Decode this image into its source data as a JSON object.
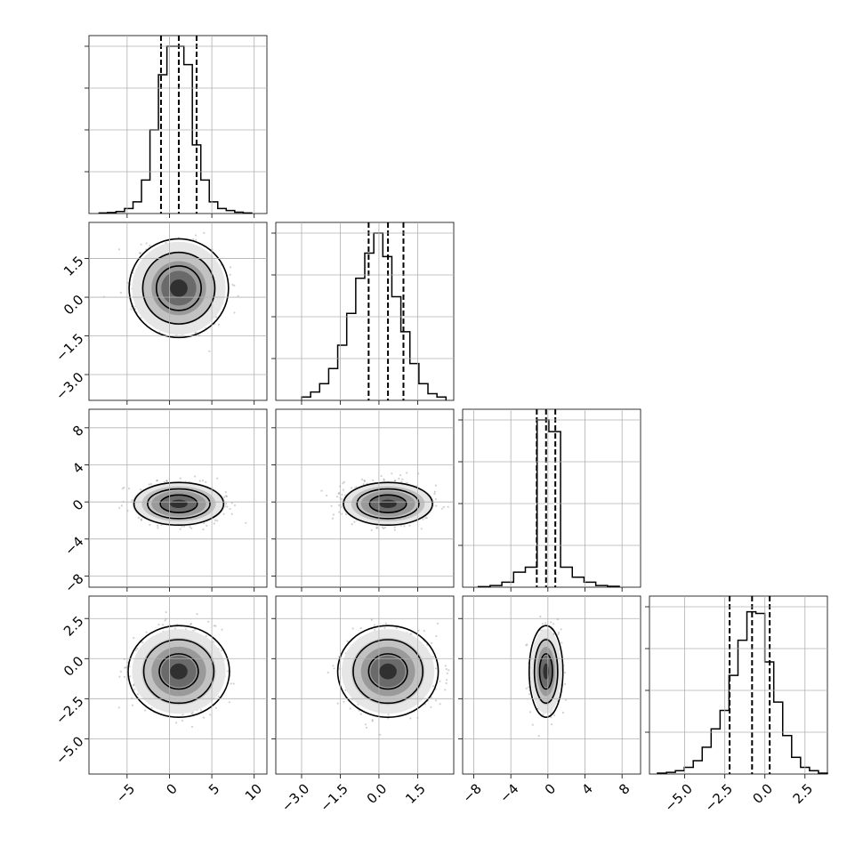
{
  "chart_data": {
    "type": "corner",
    "parameters": [
      {
        "index": 0,
        "range": [
          -9.5,
          11.5
        ],
        "ticks": [
          -5,
          0,
          5,
          10
        ],
        "tick_labels": [
          "−5",
          "0",
          "5",
          "10"
        ],
        "quantiles": [
          -1.0,
          1.1,
          3.2
        ],
        "hist": [
          0.003,
          0.006,
          0.012,
          0.03,
          0.07,
          0.2,
          0.5,
          0.83,
          1.0,
          1.0,
          0.89,
          0.41,
          0.2,
          0.07,
          0.03,
          0.018,
          0.008,
          0.003
        ],
        "hist_range": [
          -8.3,
          9.7
        ]
      },
      {
        "index": 1,
        "range": [
          -4.0,
          2.9
        ],
        "ticks": [
          -3.0,
          -1.5,
          0.0,
          1.5
        ],
        "tick_labels": [
          "−3.0",
          "−1.5",
          "0.0",
          "1.5"
        ],
        "quantiles": [
          -0.4,
          0.35,
          0.95
        ],
        "hist": [
          0.02,
          0.05,
          0.1,
          0.19,
          0.33,
          0.52,
          0.73,
          0.88,
          1.0,
          0.86,
          0.62,
          0.41,
          0.22,
          0.1,
          0.04,
          0.02
        ],
        "hist_range": [
          -3.0,
          2.6
        ]
      },
      {
        "index": 2,
        "range": [
          -9.2,
          10.0
        ],
        "ticks": [
          -8,
          -4,
          0,
          4,
          8
        ],
        "tick_labels": [
          "−8",
          "−4",
          "0",
          "4",
          "8"
        ],
        "quantiles": [
          -1.2,
          -0.2,
          0.8
        ],
        "hist": [
          0.003,
          0.01,
          0.03,
          0.09,
          0.12,
          1.0,
          0.93,
          0.12,
          0.06,
          0.03,
          0.01,
          0.005
        ],
        "hist_range": [
          -7.5,
          7.7
        ]
      },
      {
        "index": 3,
        "range": [
          -7.2,
          3.9
        ],
        "ticks": [
          -5.0,
          -2.5,
          0.0,
          2.5
        ],
        "tick_labels": [
          "−5.0",
          "−2.5",
          "0.0",
          "2.5"
        ],
        "quantiles": [
          -2.2,
          -0.8,
          0.3
        ],
        "hist": [
          0.005,
          0.01,
          0.02,
          0.04,
          0.08,
          0.16,
          0.27,
          0.38,
          0.59,
          0.8,
          0.97,
          0.96,
          0.67,
          0.43,
          0.23,
          0.1,
          0.04,
          0.02,
          0.005
        ],
        "hist_range": [
          -6.7,
          3.9
        ]
      }
    ],
    "diag_ytick_fracs": [
      0.25,
      0.5,
      0.75,
      1.0
    ],
    "pairs": [
      {
        "row": 1,
        "col": 0,
        "center": [
          1.1,
          0.35
        ],
        "spread": [
          2.3,
          0.75
        ],
        "rot": 0,
        "levels": [
          1.15,
          1.85,
          2.55
        ]
      },
      {
        "row": 2,
        "col": 0,
        "center": [
          1.1,
          -0.2
        ],
        "spread": [
          2.3,
          1.0
        ],
        "rot": 0,
        "levels": [
          0.95,
          1.6,
          2.3
        ]
      },
      {
        "row": 2,
        "col": 1,
        "center": [
          0.35,
          -0.2
        ],
        "spread": [
          0.75,
          1.0
        ],
        "rot": 0,
        "levels": [
          0.95,
          1.6,
          2.3
        ]
      },
      {
        "row": 3,
        "col": 0,
        "center": [
          1.1,
          -0.8
        ],
        "spread": [
          2.3,
          1.1
        ],
        "rot": 0,
        "levels": [
          1.0,
          1.8,
          2.6
        ]
      },
      {
        "row": 3,
        "col": 1,
        "center": [
          0.35,
          -0.8
        ],
        "spread": [
          0.75,
          1.1
        ],
        "rot": 0,
        "levels": [
          1.0,
          1.8,
          2.6
        ]
      },
      {
        "row": 3,
        "col": 2,
        "center": [
          -0.2,
          -0.8
        ],
        "spread": [
          0.7,
          1.1
        ],
        "rot": 0,
        "levels": [
          1.0,
          1.8,
          2.6
        ]
      }
    ],
    "grid": true,
    "title": "",
    "axis_labels": []
  }
}
